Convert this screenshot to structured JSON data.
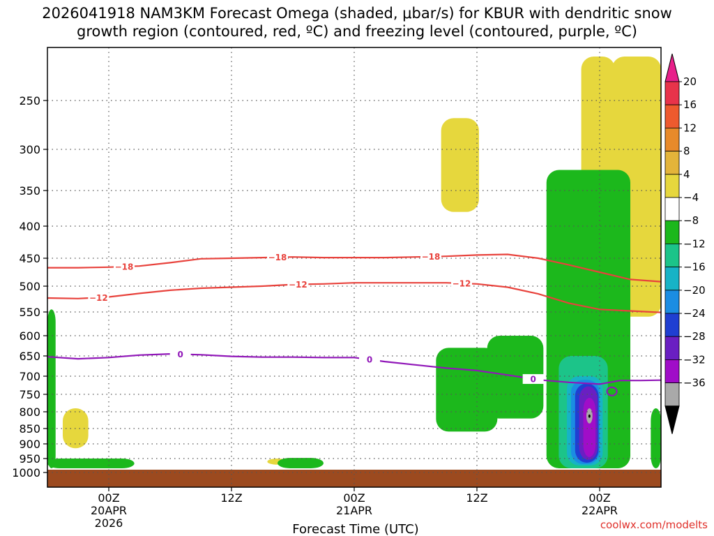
{
  "chart_data": {
    "type": "contour",
    "title_line1": "2026041918 NAM3KM Forecast Omega (shaded, μbar/s) for KBUR with dendritic snow",
    "title_line2": "growth region (contoured, red, ºC) and freezing level (contoured, purple, ºC)",
    "xlabel": "Forecast Time (UTC)",
    "credit": "coolwx.com/modelts",
    "x_range_hours": [
      -6,
      54
    ],
    "x_ticks": [
      {
        "hour": 0,
        "lines": [
          "00Z",
          "20APR",
          "2026"
        ]
      },
      {
        "hour": 12,
        "lines": [
          "12Z"
        ]
      },
      {
        "hour": 24,
        "lines": [
          "00Z",
          "21APR"
        ]
      },
      {
        "hour": 36,
        "lines": [
          "12Z"
        ]
      },
      {
        "hour": 48,
        "lines": [
          "00Z",
          "22APR"
        ]
      }
    ],
    "y_range_hPa": [
      200,
      1020
    ],
    "y_scale": "pressure (log-like, decreasing upward)",
    "y_ticks": [
      250,
      300,
      350,
      400,
      450,
      500,
      550,
      600,
      650,
      700,
      750,
      800,
      850,
      900,
      950,
      1000
    ],
    "grid": "dotted",
    "colorbar": {
      "labels": [
        "20",
        "16",
        "12",
        "8",
        "4",
        "−4",
        "−8",
        "−12",
        "−16",
        "−20",
        "−24",
        "−28",
        "−32",
        "−36"
      ],
      "colors": [
        "#e8334a",
        "#ee5a2e",
        "#e88a2a",
        "#e3b43a",
        "#e6d73d",
        "#ffffff",
        "#1cb81c",
        "#1cc489",
        "#17b3c6",
        "#1b8de2",
        "#1f3fd2",
        "#6a1fc2",
        "#a00dc8",
        "#a9a9a9"
      ],
      "over_color": "#e8208a",
      "under_color": "#000000"
    },
    "series": [
      {
        "name": "-18",
        "color": "#e8423c",
        "label": "−18",
        "points": [
          [
            -6,
            467
          ],
          [
            -3,
            467
          ],
          [
            0,
            466
          ],
          [
            3,
            464
          ],
          [
            6,
            458
          ],
          [
            9,
            451
          ],
          [
            12,
            450
          ],
          [
            15,
            449
          ],
          [
            18,
            448
          ],
          [
            21,
            449
          ],
          [
            24,
            449
          ],
          [
            27,
            449
          ],
          [
            30,
            448
          ],
          [
            33,
            447
          ],
          [
            36,
            445
          ],
          [
            39,
            444
          ],
          [
            42,
            450
          ],
          [
            45,
            462
          ],
          [
            48,
            475
          ],
          [
            51,
            488
          ],
          [
            54,
            492
          ]
        ],
        "label_hours": [
          1.5,
          16.5,
          31.5
        ]
      },
      {
        "name": "-12",
        "color": "#e8423c",
        "label": "−12",
        "points": [
          [
            -6,
            523
          ],
          [
            -3,
            524
          ],
          [
            0,
            521
          ],
          [
            3,
            514
          ],
          [
            6,
            508
          ],
          [
            9,
            504
          ],
          [
            12,
            502
          ],
          [
            15,
            500
          ],
          [
            18,
            497
          ],
          [
            21,
            496
          ],
          [
            24,
            494
          ],
          [
            27,
            494
          ],
          [
            30,
            494
          ],
          [
            33,
            494
          ],
          [
            36,
            496
          ],
          [
            39,
            502
          ],
          [
            42,
            515
          ],
          [
            45,
            533
          ],
          [
            48,
            545
          ],
          [
            51,
            548
          ],
          [
            54,
            551
          ]
        ],
        "label_hours": [
          -1,
          18.5,
          34.5
        ]
      },
      {
        "name": "0",
        "color": "#9016b8",
        "label": "0",
        "points": [
          [
            -6,
            652
          ],
          [
            -3,
            657
          ],
          [
            0,
            654
          ],
          [
            3,
            648
          ],
          [
            6,
            645
          ],
          [
            9,
            647
          ],
          [
            12,
            651
          ],
          [
            15,
            653
          ],
          [
            18,
            653
          ],
          [
            21,
            654
          ],
          [
            24,
            654
          ],
          [
            27,
            664
          ],
          [
            30,
            672
          ],
          [
            33,
            680
          ],
          [
            36,
            686
          ],
          [
            39,
            697
          ],
          [
            42,
            710
          ],
          [
            45,
            717
          ],
          [
            48,
            722
          ],
          [
            50,
            712
          ],
          [
            52,
            712
          ],
          [
            54,
            711
          ]
        ],
        "label_hours": [
          7,
          25.5,
          41.5
        ]
      }
    ],
    "shaded_regions": [
      {
        "level": "4",
        "color": "#e6d73d",
        "x": [
          32.5,
          36.2
        ],
        "p": [
          268,
          380
        ]
      },
      {
        "level": "4",
        "color": "#e6d73d",
        "x": [
          46.2,
          49.5
        ],
        "p": [
          205,
          440
        ]
      },
      {
        "level": "4",
        "color": "#e6d73d",
        "x": [
          49.2,
          54
        ],
        "p": [
          205,
          560
        ]
      },
      {
        "level": "4",
        "color": "#e6d73d",
        "x": [
          -4.5,
          -2.0
        ],
        "p": [
          790,
          915
        ]
      },
      {
        "level": "4",
        "color": "#e6d73d",
        "x": [
          15.5,
          17.5
        ],
        "p": [
          950,
          972
        ]
      },
      {
        "level": "-4",
        "color": "#1cb81c",
        "x": [
          42.8,
          51.0
        ],
        "p": [
          325,
          985
        ]
      },
      {
        "level": "-4",
        "color": "#1cb81c",
        "x": [
          37.0,
          42.5
        ],
        "p": [
          600,
          820
        ]
      },
      {
        "level": "-4",
        "color": "#1cb81c",
        "x": [
          32.0,
          38.0
        ],
        "p": [
          630,
          860
        ]
      },
      {
        "level": "-4",
        "color": "#1cb81c",
        "x": [
          44.2,
          46.5
        ],
        "p": [
          340,
          415
        ]
      },
      {
        "level": "-4",
        "color": "#1cb81c",
        "x": [
          53.0,
          54
        ],
        "p": [
          790,
          985
        ]
      },
      {
        "level": "-4",
        "color": "#1cb81c",
        "x": [
          -6,
          -5.2
        ],
        "p": [
          545,
          985
        ]
      },
      {
        "level": "-4",
        "color": "#1cb81c",
        "x": [
          -6,
          2.5
        ],
        "p": [
          950,
          985
        ]
      },
      {
        "level": "-4",
        "color": "#1cb81c",
        "x": [
          16.5,
          21.0
        ],
        "p": [
          948,
          985
        ]
      },
      {
        "level": "-8",
        "color": "#1cc489",
        "x": [
          44.0,
          48.8
        ],
        "p": [
          650,
          985
        ]
      },
      {
        "level": "-12",
        "color": "#17b3c6",
        "x": [
          44.8,
          48.3
        ],
        "p": [
          700,
          975
        ]
      },
      {
        "level": "-16",
        "color": "#1b8de2",
        "x": [
          45.2,
          48.0
        ],
        "p": [
          710,
          970
        ]
      },
      {
        "level": "-20",
        "color": "#1f3fd2",
        "x": [
          45.6,
          47.9
        ],
        "p": [
          720,
          965
        ]
      },
      {
        "level": "-24",
        "color": "#6a1fc2",
        "x": [
          46.0,
          47.8
        ],
        "p": [
          728,
          955
        ]
      },
      {
        "level": "-28",
        "color": "#a00dc8",
        "x": [
          46.4,
          47.6
        ],
        "p": [
          760,
          945
        ]
      },
      {
        "level": "-32",
        "color": "#a9a9a9",
        "x": [
          46.7,
          47.3
        ],
        "p": [
          790,
          835
        ]
      },
      {
        "level": "-36",
        "color": "#000000",
        "x": [
          46.9,
          47.1
        ],
        "p": [
          808,
          818
        ]
      }
    ],
    "ground": {
      "color": "#9c4a1f",
      "p_top": 990
    }
  }
}
